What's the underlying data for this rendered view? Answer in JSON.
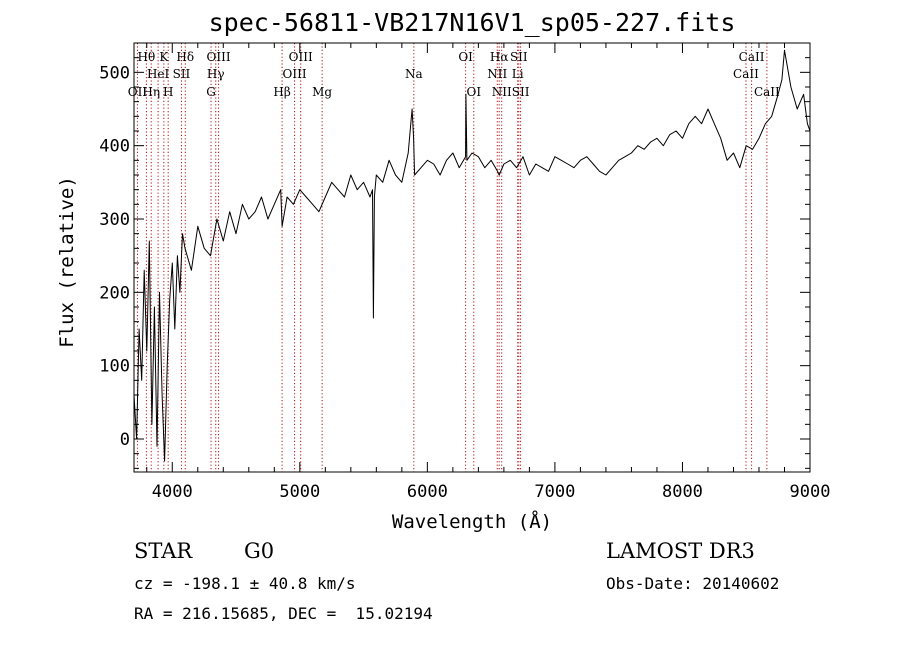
{
  "chart_data": {
    "type": "line",
    "title": "spec-56811-VB217N16V1_sp05-227.fits",
    "xlabel": "Wavelength (Å)",
    "ylabel": "Flux (relative)",
    "xlim": [
      3700,
      9000
    ],
    "ylim": [
      -45,
      540
    ],
    "xticks": [
      4000,
      5000,
      6000,
      7000,
      8000,
      9000
    ],
    "yticks": [
      0,
      100,
      200,
      300,
      400,
      500
    ],
    "series": [
      {
        "name": "flux",
        "x": [
          3700,
          3720,
          3740,
          3760,
          3780,
          3800,
          3820,
          3840,
          3860,
          3880,
          3900,
          3920,
          3940,
          3960,
          3980,
          4000,
          4020,
          4040,
          4060,
          4080,
          4100,
          4150,
          4200,
          4250,
          4300,
          4350,
          4400,
          4450,
          4500,
          4550,
          4600,
          4650,
          4700,
          4750,
          4800,
          4850,
          4861,
          4900,
          4950,
          5000,
          5050,
          5100,
          5150,
          5200,
          5250,
          5300,
          5350,
          5400,
          5450,
          5500,
          5550,
          5570,
          5577,
          5585,
          5600,
          5650,
          5700,
          5750,
          5800,
          5850,
          5880,
          5892,
          5900,
          5950,
          6000,
          6050,
          6100,
          6150,
          6200,
          6250,
          6300,
          6302,
          6310,
          6350,
          6400,
          6450,
          6500,
          6550,
          6563,
          6600,
          6650,
          6700,
          6750,
          6800,
          6850,
          6900,
          6950,
          7000,
          7050,
          7100,
          7150,
          7200,
          7250,
          7300,
          7350,
          7400,
          7450,
          7500,
          7550,
          7600,
          7650,
          7700,
          7750,
          7800,
          7850,
          7900,
          7950,
          8000,
          8050,
          8100,
          8150,
          8200,
          8250,
          8300,
          8350,
          8400,
          8450,
          8500,
          8550,
          8600,
          8650,
          8700,
          8750,
          8780,
          8800,
          8850,
          8900,
          8950,
          8980,
          9000
        ],
        "values": [
          60,
          0,
          150,
          80,
          230,
          120,
          270,
          20,
          180,
          -10,
          200,
          60,
          -30,
          100,
          190,
          240,
          150,
          250,
          200,
          280,
          260,
          230,
          290,
          260,
          250,
          300,
          270,
          310,
          280,
          320,
          300,
          310,
          330,
          300,
          320,
          340,
          290,
          330,
          320,
          340,
          330,
          320,
          310,
          330,
          350,
          340,
          330,
          360,
          340,
          350,
          330,
          340,
          165,
          330,
          360,
          350,
          380,
          360,
          350,
          390,
          450,
          410,
          360,
          370,
          380,
          375,
          360,
          380,
          390,
          370,
          385,
          470,
          380,
          390,
          385,
          370,
          380,
          365,
          360,
          375,
          380,
          370,
          385,
          360,
          375,
          370,
          365,
          385,
          380,
          375,
          370,
          380,
          385,
          375,
          365,
          360,
          370,
          380,
          385,
          390,
          400,
          395,
          405,
          410,
          400,
          415,
          420,
          410,
          430,
          440,
          430,
          450,
          430,
          410,
          380,
          390,
          370,
          400,
          395,
          410,
          430,
          440,
          470,
          490,
          530,
          480,
          450,
          470,
          430,
          420
        ]
      }
    ],
    "lines": [
      {
        "name": "OII",
        "x": 3727,
        "row": 3
      },
      {
        "name": "Hθ",
        "x": 3797,
        "row": 1
      },
      {
        "name": "Hη",
        "x": 3835,
        "row": 3
      },
      {
        "name": "HeI",
        "x": 3889,
        "row": 2
      },
      {
        "name": "K",
        "x": 3934,
        "row": 1
      },
      {
        "name": "H",
        "x": 3968,
        "row": 3
      },
      {
        "name": "SII",
        "x": 4072,
        "row": 2
      },
      {
        "name": "Hδ",
        "x": 4102,
        "row": 1
      },
      {
        "name": "G",
        "x": 4304,
        "row": 3
      },
      {
        "name": "Hγ",
        "x": 4341,
        "row": 2
      },
      {
        "name": "OIII",
        "x": 4363,
        "row": 1
      },
      {
        "name": "Hβ",
        "x": 4861,
        "row": 3
      },
      {
        "name": "OIII",
        "x": 4959,
        "row": 2
      },
      {
        "name": "OIII",
        "x": 5007,
        "row": 1
      },
      {
        "name": "Mg",
        "x": 5175,
        "row": 3
      },
      {
        "name": "Na",
        "x": 5894,
        "row": 2
      },
      {
        "name": "OI",
        "x": 6300,
        "row": 1
      },
      {
        "name": "OI",
        "x": 6364,
        "row": 3
      },
      {
        "name": "NII",
        "x": 6548,
        "row": 2
      },
      {
        "name": "Hα",
        "x": 6563,
        "row": 1
      },
      {
        "name": "NII",
        "x": 6583,
        "row": 3
      },
      {
        "name": "Li",
        "x": 6708,
        "row": 2
      },
      {
        "name": "SII",
        "x": 6717,
        "row": 1
      },
      {
        "name": "SII",
        "x": 6731,
        "row": 3
      },
      {
        "name": "CaII",
        "x": 8498,
        "row": 2
      },
      {
        "name": "CaII",
        "x": 8542,
        "row": 1
      },
      {
        "name": "CaII",
        "x": 8662,
        "row": 3
      }
    ]
  },
  "info": {
    "class": "STAR",
    "subclass": "G0",
    "survey": "LAMOST DR3",
    "cz": "cz = -198.1 ± 40.8 km/s",
    "obs_date": "Obs-Date: 20140602",
    "radec": "RA = 216.15685, DEC =  15.02194"
  }
}
